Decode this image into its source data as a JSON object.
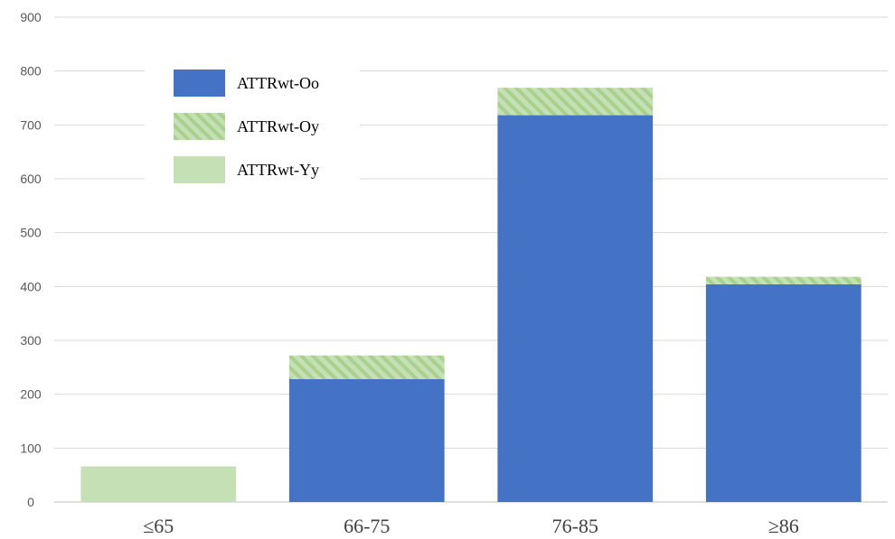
{
  "chart_data": {
    "type": "bar",
    "stacked": true,
    "categories": [
      "≤65",
      "66-75",
      "76-85",
      "≥86"
    ],
    "series": [
      {
        "name": "ATTRwt-Oo",
        "values": [
          0,
          228,
          718,
          404
        ],
        "color": "#4472C4",
        "pattern": "solid"
      },
      {
        "name": "ATTRwt-Oy",
        "values": [
          0,
          44,
          51,
          14
        ],
        "color": "#A9D18E",
        "pattern": "hatched"
      },
      {
        "name": "ATTRwt-Yy",
        "values": [
          66,
          0,
          0,
          0
        ],
        "color": "#C5E0B4",
        "pattern": "solid"
      }
    ],
    "title": "",
    "xlabel": "",
    "ylabel": "",
    "ylim": [
      0,
      900
    ],
    "yticks": [
      0,
      100,
      200,
      300,
      400,
      500,
      600,
      700,
      800,
      900
    ],
    "grid": true,
    "legend_position": "top-left"
  }
}
